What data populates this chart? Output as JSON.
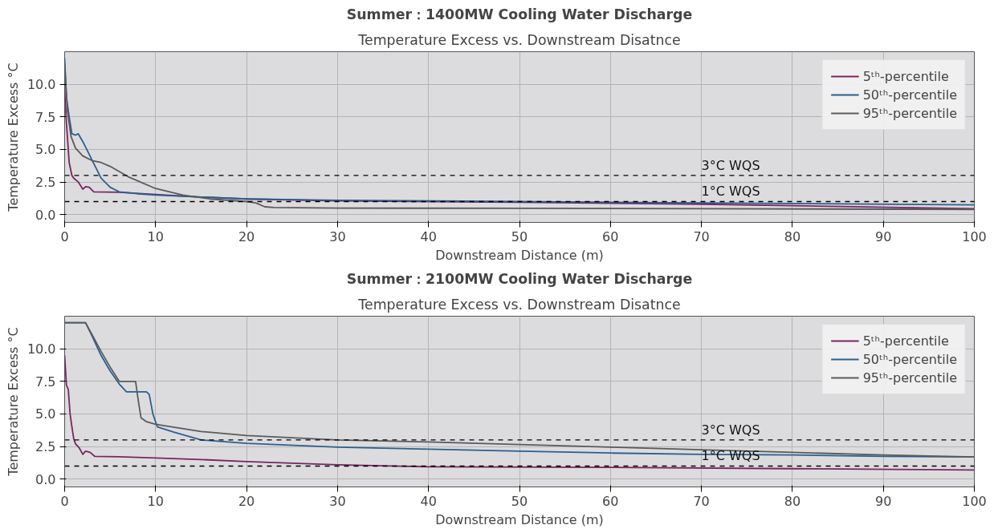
{
  "chart_data": [
    {
      "type": "line",
      "title": "Summer：1400MW Cooling Water Discharge",
      "subtitle": "Temperature Excess vs. Downstream Disatnce",
      "xlabel": "Downstream Distance (m)",
      "ylabel": "Temperature Excess °C",
      "xlim": [
        0,
        100
      ],
      "ylim": [
        -0.6,
        12.5
      ],
      "xticks": [
        0,
        10,
        20,
        30,
        40,
        50,
        60,
        70,
        80,
        90,
        100
      ],
      "yticks": [
        {
          "value": 0,
          "label": "0.0"
        },
        {
          "value": 2.5,
          "label": "2.5"
        },
        {
          "value": 5,
          "label": "5.0"
        },
        {
          "value": 7.5,
          "label": "7.5"
        },
        {
          "value": 10,
          "label": "10.0"
        }
      ],
      "grid": true,
      "legend": "top right",
      "line_style": "solid",
      "series": [
        {
          "name": "5ᵗʰ-percentile",
          "color": "#7a2560",
          "x": [
            0,
            0.2,
            0.5,
            0.8,
            1.0,
            1.5,
            2.0,
            2.3,
            2.7,
            3.2,
            6,
            10,
            15,
            20,
            30,
            50,
            70,
            100
          ],
          "values": [
            9.5,
            7,
            4,
            3,
            2.8,
            2.5,
            1.95,
            2.15,
            2.1,
            1.75,
            1.72,
            1.55,
            1.35,
            1.2,
            1.05,
            0.95,
            0.8,
            0.45
          ]
        },
        {
          "name": "50ᵗʰ-percentile",
          "color": "#2c5f8f",
          "x": [
            0,
            0.2,
            0.5,
            0.8,
            1.2,
            1.5,
            2,
            3,
            4,
            5,
            6,
            8,
            10,
            15,
            20,
            30,
            50,
            70,
            100
          ],
          "values": [
            12,
            9,
            7.5,
            6.2,
            6.1,
            6.2,
            5.6,
            4.2,
            2.8,
            2.1,
            1.75,
            1.6,
            1.5,
            1.35,
            1.2,
            1.1,
            1.0,
            0.9,
            0.75
          ]
        },
        {
          "name": "95ᵗʰ-percentile",
          "color": "#5a5a5a",
          "x": [
            0,
            0.3,
            0.7,
            1.2,
            2,
            3,
            4,
            5,
            6,
            7,
            10,
            13,
            16,
            20,
            21,
            22,
            23,
            30,
            50,
            70,
            100
          ],
          "values": [
            11.5,
            8,
            6,
            5.1,
            4.5,
            4.15,
            4.0,
            3.7,
            3.3,
            2.9,
            2.0,
            1.5,
            1.2,
            1.0,
            0.9,
            0.6,
            0.55,
            0.5,
            0.48,
            0.45,
            0.4
          ]
        }
      ],
      "ref_lines": [
        {
          "axis": "y",
          "value": 3,
          "label": "3°C WQS",
          "color": "#000000",
          "line_style": "dashed"
        },
        {
          "axis": "y",
          "value": 1,
          "label": "1°C WQS",
          "color": "#000000",
          "line_style": "dashed"
        }
      ]
    },
    {
      "type": "line",
      "title": "Summer：2100MW Cooling Water Discharge",
      "subtitle": "Temperature Excess vs. Downstream Disatnce",
      "xlabel": "Downstream Distance (m)",
      "ylabel": "Temperature Excess °C",
      "xlim": [
        0,
        100
      ],
      "ylim": [
        -0.6,
        12.5
      ],
      "xticks": [
        0,
        10,
        20,
        30,
        40,
        50,
        60,
        70,
        80,
        90,
        100
      ],
      "yticks": [
        {
          "value": 0,
          "label": "0.0"
        },
        {
          "value": 2.5,
          "label": "2.5"
        },
        {
          "value": 5,
          "label": "5.0"
        },
        {
          "value": 7.5,
          "label": "7.5"
        },
        {
          "value": 10,
          "label": "10.0"
        }
      ],
      "grid": true,
      "legend": "top right",
      "line_style": "solid",
      "series": [
        {
          "name": "5ᵗʰ-percentile",
          "color": "#7a2560",
          "x": [
            0,
            0.2,
            0.4,
            0.6,
            0.8,
            1,
            1.2,
            1.6,
            2,
            2.3,
            2.8,
            3.3,
            6,
            10,
            15,
            20,
            30,
            40,
            60,
            80,
            100
          ],
          "values": [
            9.5,
            7.2,
            6.9,
            5,
            4,
            3.1,
            2.7,
            2.4,
            1.9,
            2.15,
            2.05,
            1.75,
            1.72,
            1.62,
            1.5,
            1.35,
            1.1,
            0.95,
            0.9,
            0.8,
            0.7
          ]
        },
        {
          "name": "50ᵗʰ-percentile",
          "color": "#2c5f8f",
          "x": [
            0,
            2.3,
            3,
            4,
            5,
            6,
            6.8,
            9,
            9.3,
            9.7,
            10.2,
            12,
            15,
            20,
            30,
            40,
            50,
            60,
            70,
            80,
            90,
            100
          ],
          "values": [
            12,
            12,
            11,
            9.5,
            8.3,
            7.3,
            6.7,
            6.7,
            6.5,
            5,
            4,
            3.6,
            3.0,
            2.75,
            2.45,
            2.3,
            2.15,
            2.0,
            1.9,
            1.85,
            1.75,
            1.7
          ]
        },
        {
          "name": "95ᵗʰ-percentile",
          "color": "#5a5a5a",
          "x": [
            0,
            2.3,
            3,
            4,
            5,
            6,
            7.8,
            8.1,
            8.4,
            9,
            10,
            15,
            20,
            30,
            40,
            50,
            60,
            70,
            80,
            90,
            100
          ],
          "values": [
            12,
            12,
            11.1,
            9.8,
            8.6,
            7.5,
            7.5,
            6,
            4.7,
            4.4,
            4.2,
            3.65,
            3.35,
            3.0,
            2.85,
            2.65,
            2.45,
            2.25,
            2.05,
            1.85,
            1.7
          ]
        }
      ],
      "ref_lines": [
        {
          "axis": "y",
          "value": 3,
          "label": "3°C WQS",
          "color": "#000000",
          "line_style": "dashed"
        },
        {
          "axis": "y",
          "value": 1,
          "label": "1°C WQS",
          "color": "#000000",
          "line_style": "dashed"
        }
      ]
    }
  ]
}
